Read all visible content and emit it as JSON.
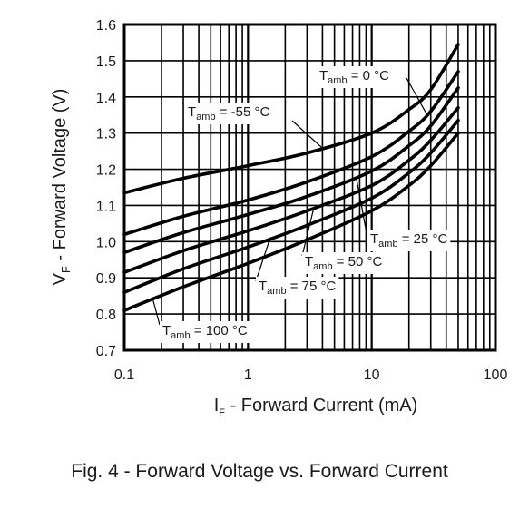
{
  "caption": "Fig. 4 - Forward Voltage vs. Forward Current",
  "chart_data": {
    "type": "line",
    "title": "Fig. 4 - Forward Voltage vs. Forward Current",
    "xlabel": {
      "main": "I",
      "sub": "F",
      "rest": " - Forward Current (mA)"
    },
    "ylabel": {
      "main": "V",
      "sub": "F",
      "rest": " - Forward Voltage (V)"
    },
    "xscale": "log",
    "xlim": [
      0.1,
      100
    ],
    "ylim": [
      0.7,
      1.6
    ],
    "xticks": [
      0.1,
      1,
      10,
      100
    ],
    "xtick_labels": [
      "0.1",
      "1",
      "10",
      "100"
    ],
    "yticks": [
      0.7,
      0.8,
      0.9,
      1.0,
      1.1,
      1.2,
      1.3,
      1.4,
      1.5,
      1.6
    ],
    "ytick_labels": [
      "0.7",
      "0.8",
      "0.9",
      "1.0",
      "1.1",
      "1.2",
      "1.3",
      "1.4",
      "1.5",
      "1.6"
    ],
    "grid": true,
    "series": [
      {
        "label_main": "T",
        "label_sub": "amb",
        "label_rest": " = -55 °C",
        "points": [
          [
            0.1,
            1.135
          ],
          [
            0.3,
            1.175
          ],
          [
            1,
            1.21
          ],
          [
            3,
            1.245
          ],
          [
            10,
            1.3
          ],
          [
            20,
            1.365
          ],
          [
            30,
            1.42
          ],
          [
            50,
            1.545
          ]
        ]
      },
      {
        "label_main": "T",
        "label_sub": "amb",
        "label_rest": " = 0 °C",
        "points": [
          [
            0.1,
            1.02
          ],
          [
            0.3,
            1.07
          ],
          [
            1,
            1.115
          ],
          [
            3,
            1.165
          ],
          [
            10,
            1.235
          ],
          [
            20,
            1.305
          ],
          [
            30,
            1.36
          ],
          [
            50,
            1.47
          ]
        ]
      },
      {
        "label_main": "T",
        "label_sub": "amb",
        "label_rest": " = 25 °C",
        "points": [
          [
            0.1,
            0.97
          ],
          [
            0.3,
            1.025
          ],
          [
            1,
            1.075
          ],
          [
            3,
            1.125
          ],
          [
            10,
            1.195
          ],
          [
            20,
            1.265
          ],
          [
            30,
            1.32
          ],
          [
            50,
            1.425
          ]
        ]
      },
      {
        "label_main": "T",
        "label_sub": "amb",
        "label_rest": " = 50 °C",
        "points": [
          [
            0.1,
            0.915
          ],
          [
            0.3,
            0.975
          ],
          [
            1,
            1.03
          ],
          [
            3,
            1.085
          ],
          [
            10,
            1.155
          ],
          [
            20,
            1.225
          ],
          [
            30,
            1.28
          ],
          [
            50,
            1.37
          ]
        ]
      },
      {
        "label_main": "T",
        "label_sub": "amb",
        "label_rest": " = 75 °C",
        "points": [
          [
            0.1,
            0.86
          ],
          [
            0.3,
            0.925
          ],
          [
            1,
            0.985
          ],
          [
            3,
            1.045
          ],
          [
            10,
            1.12
          ],
          [
            20,
            1.19
          ],
          [
            30,
            1.245
          ],
          [
            50,
            1.335
          ]
        ]
      },
      {
        "label_main": "T",
        "label_sub": "amb",
        "label_rest": " = 100 °C",
        "points": [
          [
            0.1,
            0.81
          ],
          [
            0.3,
            0.875
          ],
          [
            1,
            0.94
          ],
          [
            3,
            1.005
          ],
          [
            10,
            1.085
          ],
          [
            20,
            1.155
          ],
          [
            30,
            1.21
          ],
          [
            50,
            1.3
          ]
        ]
      }
    ]
  }
}
